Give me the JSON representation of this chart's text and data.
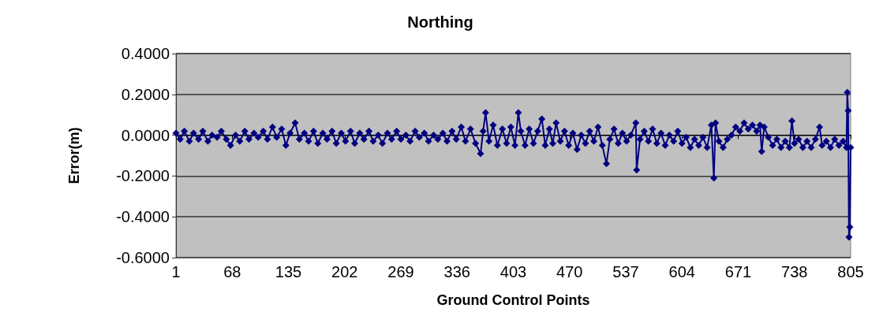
{
  "chart_data": {
    "type": "line",
    "title": "Northing",
    "xlabel": "Ground Control Points",
    "ylabel": "Error(m)",
    "xlim": [
      1,
      805
    ],
    "xticks": [
      1,
      68,
      135,
      202,
      269,
      336,
      403,
      470,
      537,
      604,
      671,
      738,
      805
    ],
    "ylim": [
      -0.6,
      0.4
    ],
    "yticks": [
      {
        "value": -0.6,
        "label": "-0.6000"
      },
      {
        "value": -0.4,
        "label": "-0.4000"
      },
      {
        "value": -0.2,
        "label": "-0.2000"
      },
      {
        "value": 0,
        "label": "0.0000"
      },
      {
        "value": 0.2,
        "label": "0.2000"
      },
      {
        "value": 0.4,
        "label": "0.4000"
      }
    ],
    "grid": "y",
    "marker": "diamond",
    "line_style": "solid",
    "series": [
      {
        "color": "#000080",
        "x": [
          1,
          6,
          11,
          17,
          22,
          28,
          33,
          39,
          44,
          50,
          55,
          61,
          66,
          72,
          77,
          83,
          88,
          94,
          99,
          105,
          110,
          116,
          121,
          127,
          132,
          137,
          143,
          148,
          154,
          159,
          165,
          170,
          176,
          181,
          187,
          192,
          198,
          203,
          209,
          214,
          220,
          225,
          231,
          236,
          242,
          247,
          253,
          258,
          264,
          269,
          275,
          280,
          286,
          291,
          297,
          302,
          308,
          313,
          319,
          324,
          330,
          335,
          341,
          346,
          352,
          358,
          364,
          367,
          370,
          374,
          379,
          384,
          390,
          395,
          400,
          405,
          409,
          412,
          417,
          422,
          427,
          432,
          437,
          441,
          446,
          450,
          454,
          459,
          464,
          469,
          474,
          479,
          484,
          489,
          494,
          499,
          504,
          509,
          514,
          518,
          523,
          528,
          533,
          538,
          543,
          549,
          550,
          554,
          559,
          564,
          569,
          574,
          579,
          584,
          589,
          594,
          599,
          604,
          609,
          614,
          619,
          624,
          629,
          634,
          639,
          642,
          644,
          648,
          653,
          658,
          663,
          668,
          673,
          678,
          683,
          688,
          693,
          697,
          699,
          702,
          707,
          712,
          717,
          722,
          727,
          732,
          735,
          738,
          743,
          748,
          753,
          758,
          763,
          768,
          771,
          776,
          781,
          786,
          791,
          796,
          800,
          801,
          802,
          803,
          804,
          805
        ],
        "values": [
          0.01,
          -0.02,
          0.02,
          -0.03,
          0.01,
          -0.02,
          0.02,
          -0.03,
          0.0,
          -0.01,
          0.02,
          -0.02,
          -0.05,
          0.0,
          -0.03,
          0.02,
          -0.02,
          0.01,
          -0.01,
          0.02,
          -0.02,
          0.04,
          -0.01,
          0.03,
          -0.05,
          0.01,
          0.06,
          -0.02,
          0.01,
          -0.03,
          0.02,
          -0.04,
          0.01,
          -0.02,
          0.02,
          -0.04,
          0.01,
          -0.03,
          0.02,
          -0.04,
          0.01,
          -0.02,
          0.02,
          -0.03,
          0.0,
          -0.04,
          0.01,
          -0.02,
          0.02,
          -0.02,
          0.0,
          -0.03,
          0.02,
          -0.01,
          0.01,
          -0.03,
          0.0,
          -0.02,
          0.01,
          -0.03,
          0.02,
          -0.02,
          0.04,
          -0.03,
          0.03,
          -0.04,
          -0.09,
          0.02,
          0.11,
          -0.03,
          0.05,
          -0.05,
          0.03,
          -0.04,
          0.04,
          -0.05,
          0.11,
          0.02,
          -0.05,
          0.03,
          -0.04,
          0.02,
          0.08,
          -0.05,
          0.03,
          -0.04,
          0.06,
          -0.03,
          0.02,
          -0.05,
          0.01,
          -0.07,
          0.0,
          -0.04,
          0.02,
          -0.03,
          0.04,
          -0.05,
          -0.14,
          -0.02,
          0.03,
          -0.04,
          0.01,
          -0.03,
          0.0,
          0.06,
          -0.17,
          -0.02,
          0.02,
          -0.03,
          0.03,
          -0.04,
          0.01,
          -0.05,
          0.0,
          -0.03,
          0.02,
          -0.04,
          -0.01,
          -0.06,
          -0.02,
          -0.05,
          -0.01,
          -0.06,
          0.05,
          -0.21,
          0.06,
          -0.03,
          -0.06,
          -0.02,
          0.0,
          0.04,
          0.02,
          0.06,
          0.03,
          0.05,
          0.02,
          0.05,
          -0.08,
          0.04,
          -0.01,
          -0.05,
          -0.02,
          -0.06,
          -0.03,
          -0.06,
          0.07,
          -0.04,
          -0.02,
          -0.06,
          -0.03,
          -0.06,
          -0.02,
          0.04,
          -0.05,
          -0.03,
          -0.06,
          -0.02,
          -0.05,
          -0.03,
          -0.06,
          0.21,
          0.12,
          -0.5,
          -0.45,
          -0.06
        ]
      }
    ]
  }
}
